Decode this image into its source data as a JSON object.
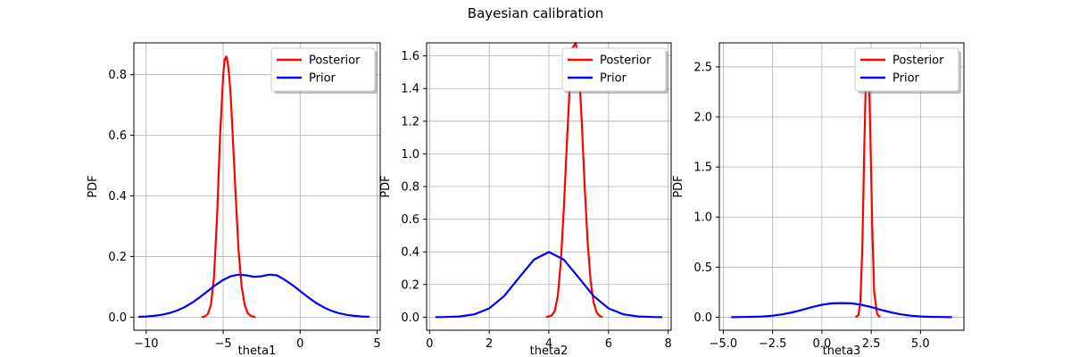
{
  "figure": {
    "title": "Bayesian calibration"
  },
  "chart_data": [
    {
      "type": "line",
      "xlabel": "theta1",
      "ylabel": "PDF",
      "xlim": [
        -10.8,
        5.2
      ],
      "ylim": [
        -0.043,
        0.905
      ],
      "xticks": [
        -10,
        -5,
        0,
        5
      ],
      "yticks": [
        0.0,
        0.2,
        0.4,
        0.6,
        0.8
      ],
      "grid": true,
      "legend_position": "top-right",
      "series": [
        {
          "name": "Posterior",
          "color": "#ff0000",
          "x": [
            -6.4,
            -6.2,
            -6.0,
            -5.8,
            -5.6,
            -5.4,
            -5.2,
            -5.0,
            -4.9,
            -4.8,
            -4.7,
            -4.6,
            -4.5,
            -4.4,
            -4.2,
            -4.0,
            -3.8,
            -3.6,
            -3.4,
            -3.2,
            -3.0,
            -2.9
          ],
          "y": [
            0.0,
            0.002,
            0.01,
            0.04,
            0.13,
            0.33,
            0.6,
            0.8,
            0.85,
            0.86,
            0.84,
            0.79,
            0.72,
            0.62,
            0.41,
            0.22,
            0.1,
            0.04,
            0.013,
            0.004,
            0.001,
            0.0
          ]
        },
        {
          "name": "Prior",
          "color": "#0000ff",
          "x": [
            -10.5,
            -10.0,
            -9.5,
            -9.0,
            -8.5,
            -8.0,
            -7.5,
            -7.0,
            -6.5,
            -6.0,
            -5.5,
            -5.0,
            -4.5,
            -4.0,
            -3.5,
            -3.0,
            -2.5,
            -2.0,
            -1.5,
            -1.0,
            -0.5,
            0.0,
            0.5,
            1.0,
            1.5,
            2.0,
            2.5,
            3.0,
            3.5,
            4.0,
            4.5
          ],
          "y": [
            0.0011,
            0.0022,
            0.0044,
            0.0079,
            0.0135,
            0.0218,
            0.0333,
            0.0484,
            0.0665,
            0.0863,
            0.1059,
            0.1231,
            0.1352,
            0.1405,
            0.1382,
            0.133,
            0.1352,
            0.1405,
            0.1382,
            0.1231,
            0.1059,
            0.0863,
            0.0665,
            0.0484,
            0.0333,
            0.0218,
            0.0135,
            0.0079,
            0.0044,
            0.0022,
            0.0011
          ]
        }
      ]
    },
    {
      "type": "line",
      "xlabel": "theta2",
      "ylabel": "PDF",
      "xlim": [
        -0.1,
        8.1
      ],
      "ylim": [
        -0.08,
        1.68
      ],
      "xticks": [
        0,
        2,
        4,
        6,
        8
      ],
      "yticks": [
        0.0,
        0.2,
        0.4,
        0.6,
        0.8,
        1.0,
        1.2,
        1.4,
        1.6
      ],
      "grid": true,
      "legend_position": "top-right",
      "series": [
        {
          "name": "Posterior",
          "color": "#ff0000",
          "x": [
            3.9,
            4.1,
            4.2,
            4.3,
            4.4,
            4.5,
            4.6,
            4.7,
            4.8,
            4.9,
            5.0,
            5.1,
            5.2,
            5.3,
            5.4,
            5.5,
            5.6,
            5.7,
            5.8
          ],
          "y": [
            0.0,
            0.01,
            0.04,
            0.13,
            0.34,
            0.66,
            1.05,
            1.42,
            1.65,
            1.68,
            1.55,
            1.2,
            0.8,
            0.46,
            0.22,
            0.09,
            0.03,
            0.008,
            0.0
          ]
        },
        {
          "name": "Prior",
          "color": "#0000ff",
          "x": [
            0.2,
            0.5,
            1.0,
            1.5,
            2.0,
            2.5,
            3.0,
            3.5,
            4.0,
            4.5,
            5.0,
            5.5,
            6.0,
            6.5,
            7.0,
            7.5,
            7.8
          ],
          "y": [
            0.0003,
            0.0009,
            0.0044,
            0.0175,
            0.054,
            0.1295,
            0.242,
            0.3521,
            0.3989,
            0.3521,
            0.242,
            0.1295,
            0.054,
            0.0175,
            0.0044,
            0.0009,
            0.0003
          ]
        }
      ]
    },
    {
      "type": "line",
      "xlabel": "theta3",
      "ylabel": "PDF",
      "xlim": [
        -5.2,
        7.2
      ],
      "ylim": [
        -0.13,
        2.74
      ],
      "xticks": [
        -5.0,
        -2.5,
        0.0,
        2.5,
        5.0
      ],
      "yticks": [
        0.0,
        0.5,
        1.0,
        1.5,
        2.0,
        2.5
      ],
      "grid": true,
      "legend_position": "top-right",
      "series": [
        {
          "name": "Posterior",
          "color": "#ff0000",
          "x": [
            1.7,
            1.85,
            1.95,
            2.05,
            2.15,
            2.25,
            2.35,
            2.45,
            2.55,
            2.65,
            2.8,
            2.95
          ],
          "y": [
            0.0,
            0.02,
            0.15,
            0.7,
            1.7,
            2.55,
            2.62,
            1.9,
            0.9,
            0.25,
            0.03,
            0.0
          ]
        },
        {
          "name": "Prior",
          "color": "#0000ff",
          "x": [
            -4.6,
            -4.0,
            -3.5,
            -3.0,
            -2.5,
            -2.0,
            -1.5,
            -1.0,
            -0.5,
            0.0,
            0.5,
            1.0,
            1.5,
            2.0,
            2.5,
            3.0,
            3.5,
            4.0,
            4.5,
            5.0,
            5.5,
            6.0,
            6.6
          ],
          "y": [
            0.0005,
            0.0015,
            0.0035,
            0.0076,
            0.0151,
            0.0285,
            0.0483,
            0.0736,
            0.1008,
            0.1244,
            0.138,
            0.141,
            0.138,
            0.1244,
            0.1008,
            0.0736,
            0.0483,
            0.0285,
            0.0151,
            0.0076,
            0.0035,
            0.0015,
            0.0005
          ]
        }
      ]
    }
  ]
}
